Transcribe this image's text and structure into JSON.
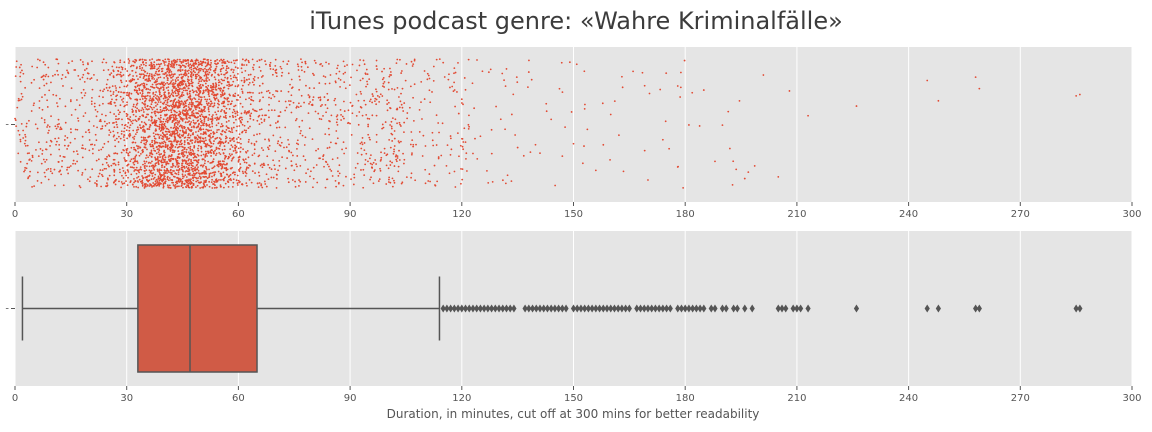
{
  "title": "iTunes podcast genre: «Wahre Kriminalfälle»",
  "colors": {
    "accent": "#e24a33",
    "panel": "#e5e5e5",
    "grid": "#ffffff",
    "box_line": "#555555",
    "box_fill": "#d05b46"
  },
  "chart_data": [
    {
      "type": "scatter",
      "subtype": "strip",
      "xlim": [
        0,
        300
      ],
      "xticks": [
        "0",
        "30",
        "60",
        "90",
        "120",
        "150",
        "180",
        "210",
        "240",
        "270",
        "300"
      ],
      "ytick": "-",
      "grid": true,
      "density_note_values": {
        "dense_range": [
          0,
          105
        ],
        "peak_range": [
          25,
          65
        ]
      },
      "sparse_points": [
        110,
        112,
        115,
        118,
        121,
        123,
        125,
        128,
        132,
        135,
        138,
        141,
        144,
        147,
        150,
        153,
        156,
        160,
        163,
        166,
        170,
        174,
        178,
        181,
        185,
        188,
        192,
        196,
        201,
        205,
        208,
        213,
        226,
        245,
        248,
        258,
        259,
        285,
        286
      ]
    },
    {
      "type": "box",
      "xlim": [
        0,
        300
      ],
      "xticks": [
        "0",
        "30",
        "60",
        "90",
        "120",
        "150",
        "180",
        "210",
        "240",
        "270",
        "300"
      ],
      "ytick": "-",
      "xlabel": "Duration, in minutes, cut off at 300 mins for better readability",
      "whisker_low": 2,
      "q1": 33,
      "median": 47,
      "q3": 65,
      "whisker_high": 114,
      "outliers": [
        115,
        116,
        117,
        118,
        119,
        120,
        121,
        122,
        123,
        124,
        125,
        126,
        127,
        128,
        129,
        130,
        131,
        132,
        133,
        134,
        137,
        138,
        139,
        140,
        141,
        142,
        143,
        144,
        145,
        146,
        147,
        148,
        150,
        151,
        152,
        153,
        154,
        155,
        156,
        157,
        158,
        159,
        160,
        161,
        162,
        163,
        164,
        165,
        167,
        168,
        169,
        170,
        171,
        172,
        173,
        174,
        175,
        176,
        178,
        179,
        180,
        181,
        182,
        183,
        184,
        185,
        187,
        188,
        190,
        191,
        193,
        194,
        196,
        198,
        205,
        206,
        207,
        209,
        210,
        211,
        213,
        226,
        245,
        248,
        258,
        259,
        285,
        286
      ]
    }
  ]
}
